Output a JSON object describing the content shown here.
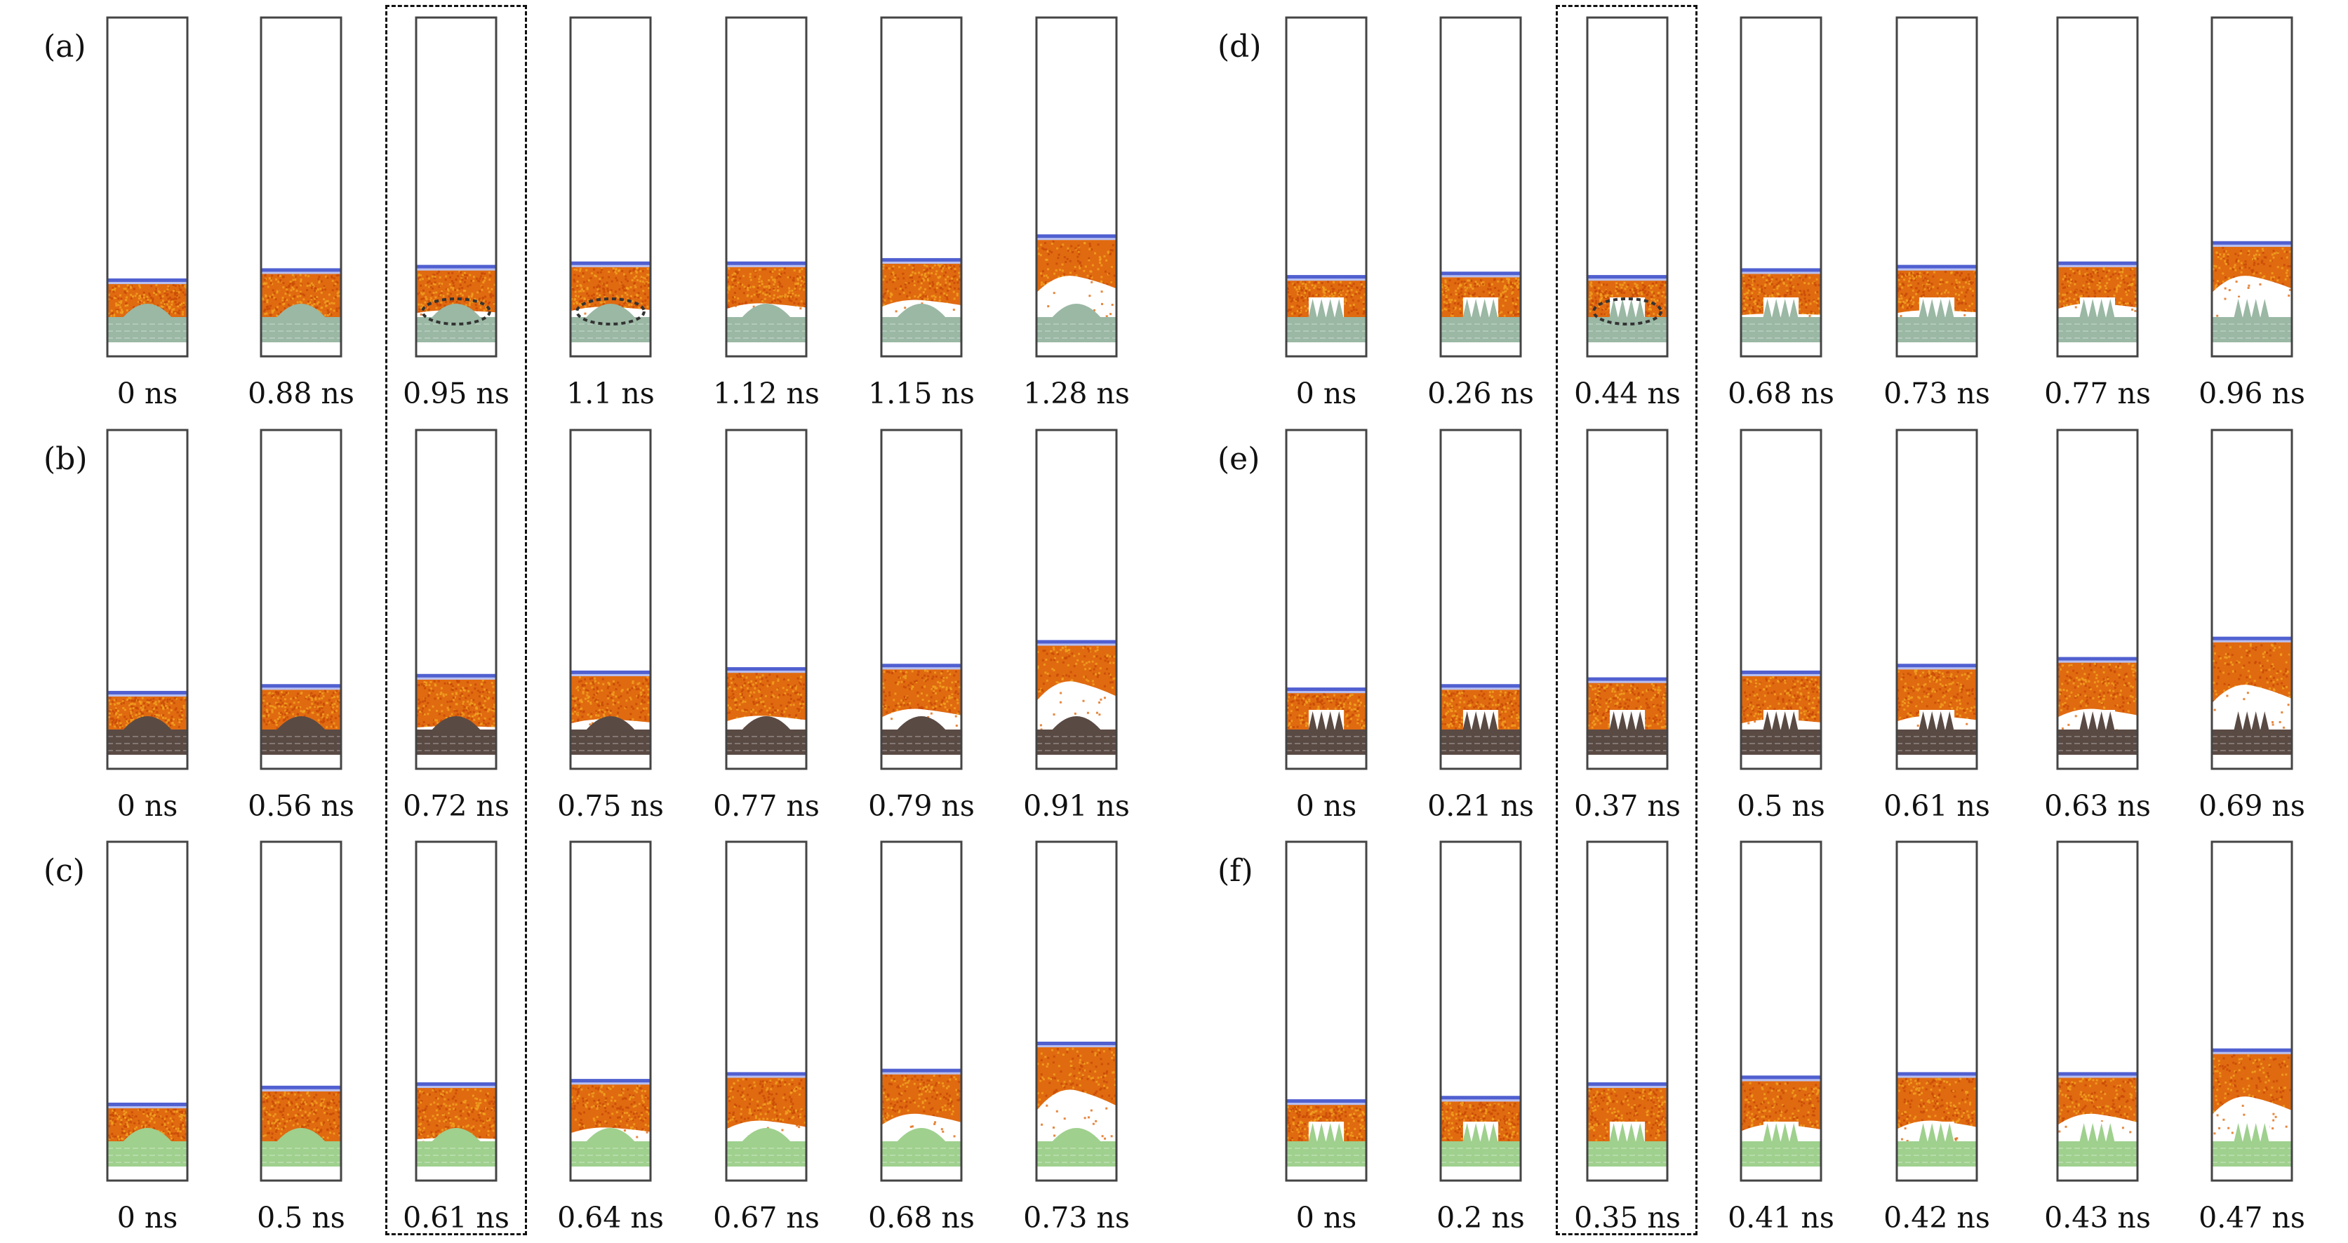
{
  "figure": {
    "colors": {
      "liquid": "#e06a10",
      "liquid_light": "#f0a020",
      "piston": "#5060d0",
      "piston_light": "#b8bff0",
      "frame": "#444444",
      "annotation": "#333333"
    },
    "rows": [
      {
        "label": "(a)",
        "substrate": "single-bump",
        "substrate_color": "#9ab8a4",
        "highlight_index": 2,
        "frames": [
          {
            "time": "0 ns",
            "piston_level": 0.23,
            "void": 0.0,
            "circled": false
          },
          {
            "time": "0.88 ns",
            "piston_level": 0.26,
            "void": 0.0,
            "circled": false
          },
          {
            "time": "0.95 ns",
            "piston_level": 0.27,
            "void": 0.02,
            "circled": true
          },
          {
            "time": "1.1 ns",
            "piston_level": 0.28,
            "void": 0.03,
            "circled": true
          },
          {
            "time": "1.12 ns",
            "piston_level": 0.28,
            "void": 0.04,
            "circled": false
          },
          {
            "time": "1.15 ns",
            "piston_level": 0.29,
            "void": 0.05,
            "circled": false
          },
          {
            "time": "1.28 ns",
            "piston_level": 0.36,
            "void": 0.12,
            "circled": false
          }
        ]
      },
      {
        "label": "(b)",
        "substrate": "single-bump",
        "substrate_color": "#5a4a44",
        "highlight_index": 2,
        "frames": [
          {
            "time": "0 ns",
            "piston_level": 0.23,
            "void": 0.0,
            "circled": false
          },
          {
            "time": "0.56 ns",
            "piston_level": 0.25,
            "void": 0.0,
            "circled": false
          },
          {
            "time": "0.72 ns",
            "piston_level": 0.28,
            "void": 0.01,
            "circled": false
          },
          {
            "time": "0.75 ns",
            "piston_level": 0.29,
            "void": 0.03,
            "circled": false
          },
          {
            "time": "0.77 ns",
            "piston_level": 0.3,
            "void": 0.04,
            "circled": false
          },
          {
            "time": "0.79 ns",
            "piston_level": 0.31,
            "void": 0.06,
            "circled": false
          },
          {
            "time": "0.91 ns",
            "piston_level": 0.38,
            "void": 0.14,
            "circled": false
          }
        ]
      },
      {
        "label": "(c)",
        "substrate": "single-bump",
        "substrate_color": "#9fd08e",
        "highlight_index": 2,
        "frames": [
          {
            "time": "0 ns",
            "piston_level": 0.23,
            "void": 0.0,
            "circled": false
          },
          {
            "time": "0.5 ns",
            "piston_level": 0.28,
            "void": 0.0,
            "circled": false
          },
          {
            "time": "0.61 ns",
            "piston_level": 0.29,
            "void": 0.01,
            "circled": false
          },
          {
            "time": "0.64 ns",
            "piston_level": 0.3,
            "void": 0.04,
            "circled": false
          },
          {
            "time": "0.67 ns",
            "piston_level": 0.32,
            "void": 0.06,
            "circled": false
          },
          {
            "time": "0.68 ns",
            "piston_level": 0.33,
            "void": 0.08,
            "circled": false
          },
          {
            "time": "0.73 ns",
            "piston_level": 0.41,
            "void": 0.15,
            "circled": false
          }
        ]
      },
      {
        "label": "(d)",
        "substrate": "pillars",
        "substrate_color": "#9ab8a4",
        "highlight_index": 2,
        "frames": [
          {
            "time": "0 ns",
            "piston_level": 0.24,
            "void": 0.0,
            "circled": false
          },
          {
            "time": "0.26 ns",
            "piston_level": 0.25,
            "void": 0.0,
            "circled": false
          },
          {
            "time": "0.44 ns",
            "piston_level": 0.24,
            "void": 0.0,
            "circled": true
          },
          {
            "time": "0.68 ns",
            "piston_level": 0.26,
            "void": 0.01,
            "circled": false
          },
          {
            "time": "0.73 ns",
            "piston_level": 0.27,
            "void": 0.02,
            "circled": false
          },
          {
            "time": "0.77 ns",
            "piston_level": 0.28,
            "void": 0.04,
            "circled": false
          },
          {
            "time": "0.96 ns",
            "piston_level": 0.34,
            "void": 0.12,
            "circled": false
          }
        ]
      },
      {
        "label": "(e)",
        "substrate": "pillars",
        "substrate_color": "#5a4a44",
        "highlight_index": 2,
        "frames": [
          {
            "time": "0 ns",
            "piston_level": 0.24,
            "void": 0.0,
            "circled": false
          },
          {
            "time": "0.21 ns",
            "piston_level": 0.25,
            "void": 0.0,
            "circled": false
          },
          {
            "time": "0.37 ns",
            "piston_level": 0.27,
            "void": 0.0,
            "circled": false
          },
          {
            "time": "0.5 ns",
            "piston_level": 0.29,
            "void": 0.03,
            "circled": false
          },
          {
            "time": "0.61 ns",
            "piston_level": 0.31,
            "void": 0.04,
            "circled": false
          },
          {
            "time": "0.63 ns",
            "piston_level": 0.33,
            "void": 0.06,
            "circled": false
          },
          {
            "time": "0.69 ns",
            "piston_level": 0.39,
            "void": 0.13,
            "circled": false
          }
        ]
      },
      {
        "label": "(f)",
        "substrate": "pillars",
        "substrate_color": "#9fd08e",
        "highlight_index": 2,
        "frames": [
          {
            "time": "0 ns",
            "piston_level": 0.24,
            "void": 0.0,
            "circled": false
          },
          {
            "time": "0.2 ns",
            "piston_level": 0.25,
            "void": 0.0,
            "circled": false
          },
          {
            "time": "0.35 ns",
            "piston_level": 0.29,
            "void": 0.0,
            "circled": false
          },
          {
            "time": "0.41 ns",
            "piston_level": 0.31,
            "void": 0.05,
            "circled": false
          },
          {
            "time": "0.42 ns",
            "piston_level": 0.32,
            "void": 0.06,
            "circled": false
          },
          {
            "time": "0.43 ns",
            "piston_level": 0.32,
            "void": 0.08,
            "circled": false
          },
          {
            "time": "0.47 ns",
            "piston_level": 0.39,
            "void": 0.13,
            "circled": false
          }
        ]
      }
    ]
  }
}
